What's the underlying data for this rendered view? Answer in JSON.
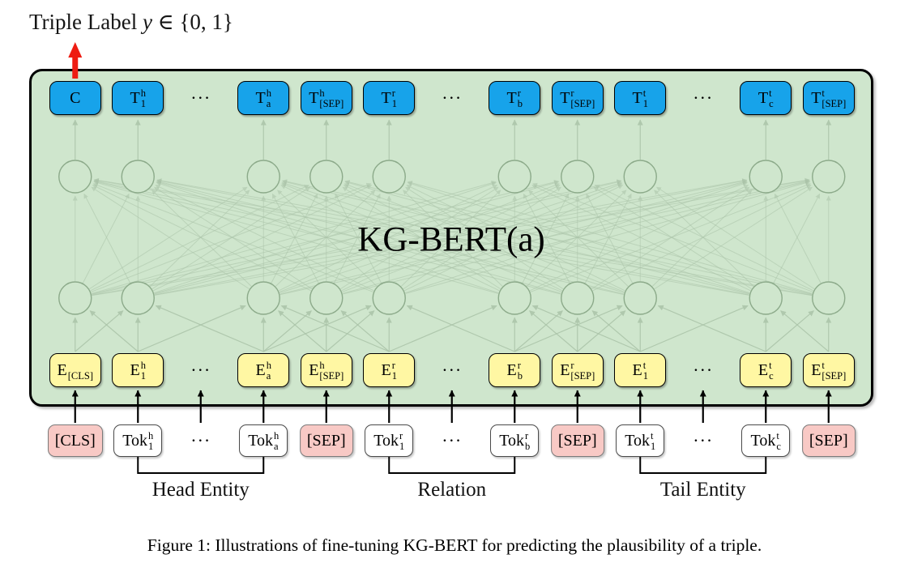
{
  "header": {
    "prefix": "Triple Label ",
    "variable": "y",
    "suffix": " ∈ {0, 1}"
  },
  "model_label": "KG-BERT(a)",
  "caption": "Figure 1: Illustrations of fine-tuning KG-BERT for predicting the plausibility of a triple.",
  "dots": "···",
  "colors": {
    "green": "#cfe6cd",
    "blue": "#17a3ea",
    "yellow": "#fff7a3",
    "pink": "#f8c9c5",
    "mesh": "#aac3a8",
    "red": "#ee1c12"
  },
  "slots": [
    {
      "id": "cls",
      "top": {
        "base": "C"
      },
      "embed": {
        "base": "E",
        "sub": "[CLS]"
      },
      "token": {
        "base": "[CLS]"
      },
      "token_color": "pink"
    },
    {
      "id": "h1",
      "top": {
        "base": "T",
        "sup": "h",
        "sub": "1"
      },
      "embed": {
        "base": "E",
        "sup": "h",
        "sub": "1"
      },
      "token": {
        "base": "Tok",
        "sup": "h",
        "sub": "1"
      },
      "token_color": "white"
    },
    {
      "id": "h-dots",
      "dots": true
    },
    {
      "id": "ha",
      "top": {
        "base": "T",
        "sup": "h",
        "sub": "a"
      },
      "embed": {
        "base": "E",
        "sup": "h",
        "sub": "a"
      },
      "token": {
        "base": "Tok",
        "sup": "h",
        "sub": "a"
      },
      "token_color": "white"
    },
    {
      "id": "h-sep",
      "top": {
        "base": "T",
        "sup": "h",
        "sub": "[SEP]"
      },
      "embed": {
        "base": "E",
        "sup": "h",
        "sub": "[SEP]"
      },
      "token": {
        "base": "[SEP]"
      },
      "token_color": "pink"
    },
    {
      "id": "r1",
      "top": {
        "base": "T",
        "sup": "r",
        "sub": "1"
      },
      "embed": {
        "base": "E",
        "sup": "r",
        "sub": "1"
      },
      "token": {
        "base": "Tok",
        "sup": "r",
        "sub": "1"
      },
      "token_color": "white"
    },
    {
      "id": "r-dots",
      "dots": true
    },
    {
      "id": "rb",
      "top": {
        "base": "T",
        "sup": "r",
        "sub": "b"
      },
      "embed": {
        "base": "E",
        "sup": "r",
        "sub": "b"
      },
      "token": {
        "base": "Tok",
        "sup": "r",
        "sub": "b"
      },
      "token_color": "white"
    },
    {
      "id": "r-sep",
      "top": {
        "base": "T",
        "sup": "r",
        "sub": "[SEP]"
      },
      "embed": {
        "base": "E",
        "sup": "r",
        "sub": "[SEP]"
      },
      "token": {
        "base": "[SEP]"
      },
      "token_color": "pink"
    },
    {
      "id": "t1",
      "top": {
        "base": "T",
        "sup": "t",
        "sub": "1"
      },
      "embed": {
        "base": "E",
        "sup": "t",
        "sub": "1"
      },
      "token": {
        "base": "Tok",
        "sup": "t",
        "sub": "1"
      },
      "token_color": "white"
    },
    {
      "id": "t-dots",
      "dots": true
    },
    {
      "id": "tc",
      "top": {
        "base": "T",
        "sup": "t",
        "sub": "c"
      },
      "embed": {
        "base": "E",
        "sup": "t",
        "sub": "c"
      },
      "token": {
        "base": "Tok",
        "sup": "t",
        "sub": "c"
      },
      "token_color": "white"
    },
    {
      "id": "t-sep",
      "top": {
        "base": "T",
        "sup": "t",
        "sub": "[SEP]"
      },
      "embed": {
        "base": "E",
        "sup": "t",
        "sub": "[SEP]"
      },
      "token": {
        "base": "[SEP]"
      },
      "token_color": "pink"
    }
  ],
  "groups": [
    {
      "label": "Head Entity",
      "from": 1,
      "to": 3
    },
    {
      "label": "Relation",
      "from": 5,
      "to": 7
    },
    {
      "label": "Tail Entity",
      "from": 9,
      "to": 11
    }
  ]
}
